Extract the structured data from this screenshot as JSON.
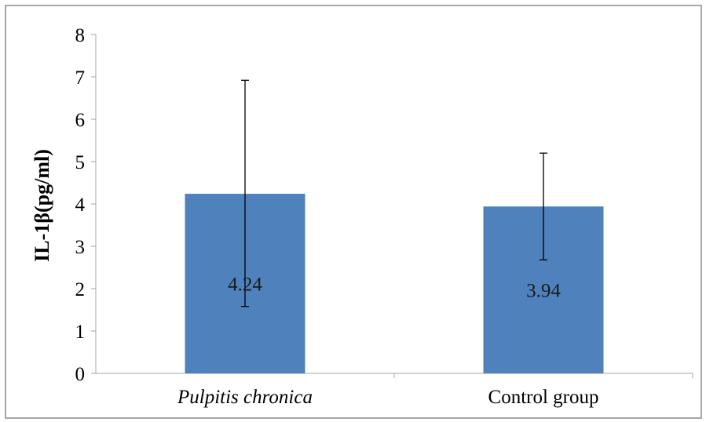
{
  "chart_data": {
    "type": "bar",
    "title": "",
    "xlabel": "",
    "ylabel": "IL-1β(pg/ml)",
    "ylim": [
      0,
      8
    ],
    "yticks": [
      0,
      1,
      2,
      3,
      4,
      5,
      6,
      7,
      8
    ],
    "grid": false,
    "categories": [
      "Pulpitis chronica",
      "Control group"
    ],
    "category_italic": [
      true,
      false
    ],
    "values": [
      4.24,
      3.94
    ],
    "data_labels": [
      "4.24",
      "3.94"
    ],
    "error_bars": [
      {
        "low": 1.58,
        "high": 6.92
      },
      {
        "low": 2.68,
        "high": 5.2
      }
    ],
    "bar_color": "#4f81bd"
  }
}
